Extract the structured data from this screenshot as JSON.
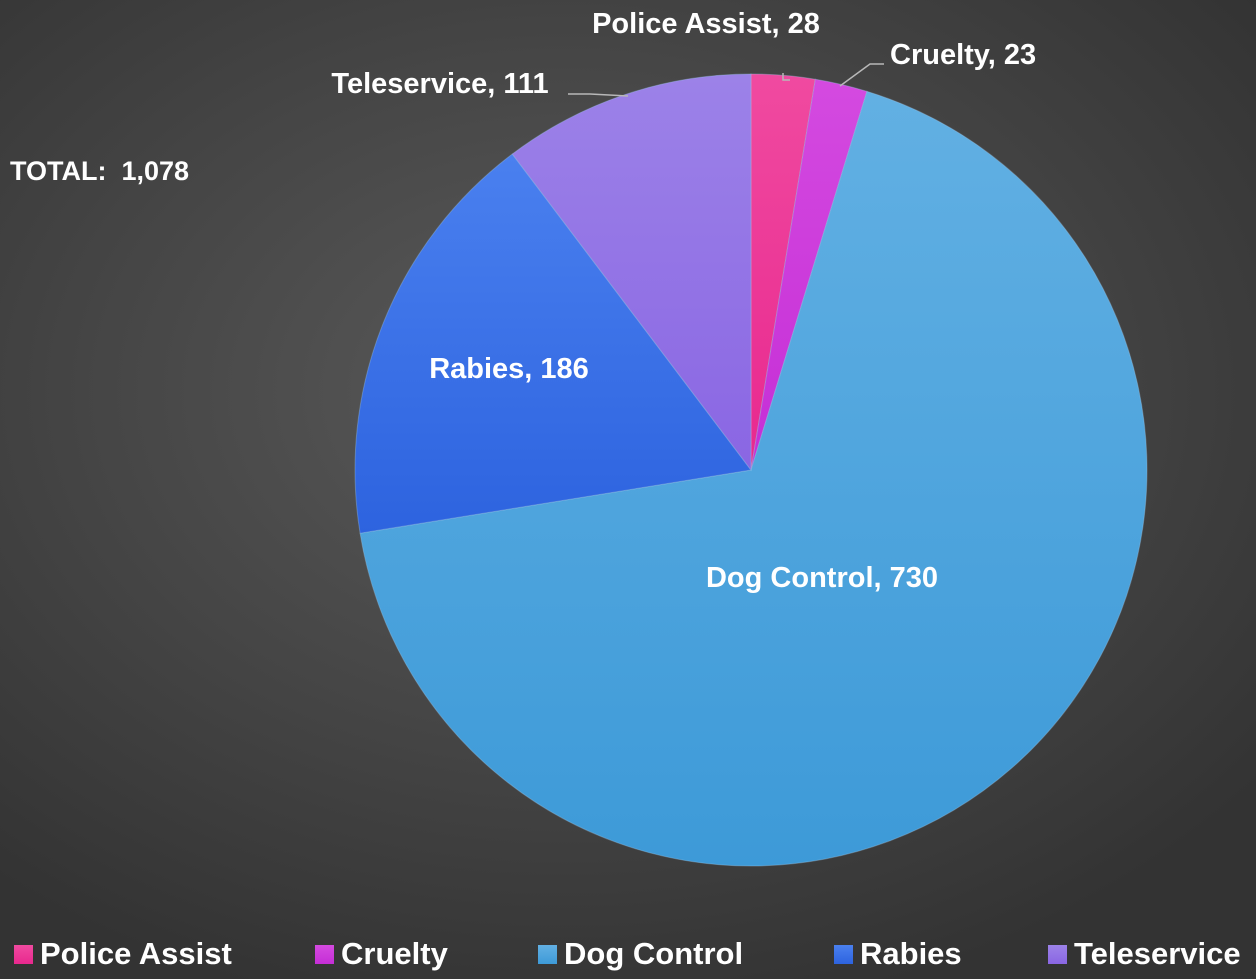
{
  "chart_data": {
    "type": "pie",
    "title": "",
    "annotation": "TOTAL:  1,078",
    "slices": [
      {
        "label": "Police Assist",
        "value": 28,
        "data_label": "Police Assist, 28",
        "color": "#e8288e",
        "color_light": "#f04aa0"
      },
      {
        "label": "Cruelty",
        "value": 23,
        "data_label": "Cruelty, 23",
        "color": "#c52ed6",
        "color_light": "#d44ae0"
      },
      {
        "label": "Dog Control",
        "value": 730,
        "data_label": "Dog Control, 730",
        "color": "#3d9ad8",
        "color_light": "#62b0e3"
      },
      {
        "label": "Rabies",
        "value": 186,
        "data_label": "Rabies, 186",
        "color": "#2d63df",
        "color_light": "#4a80ef"
      },
      {
        "label": "Teleservice",
        "value": 111,
        "data_label": "Teleservice, 111",
        "color": "#8a66e3",
        "color_light": "#9c82e8"
      }
    ],
    "start_angle": "12 o'clock",
    "direction": "clockwise",
    "legend_position": "bottom"
  },
  "colors": {
    "text": "#ffffff",
    "leader_line": "#b8b8b8",
    "slice_border": "#9fc9ea"
  }
}
